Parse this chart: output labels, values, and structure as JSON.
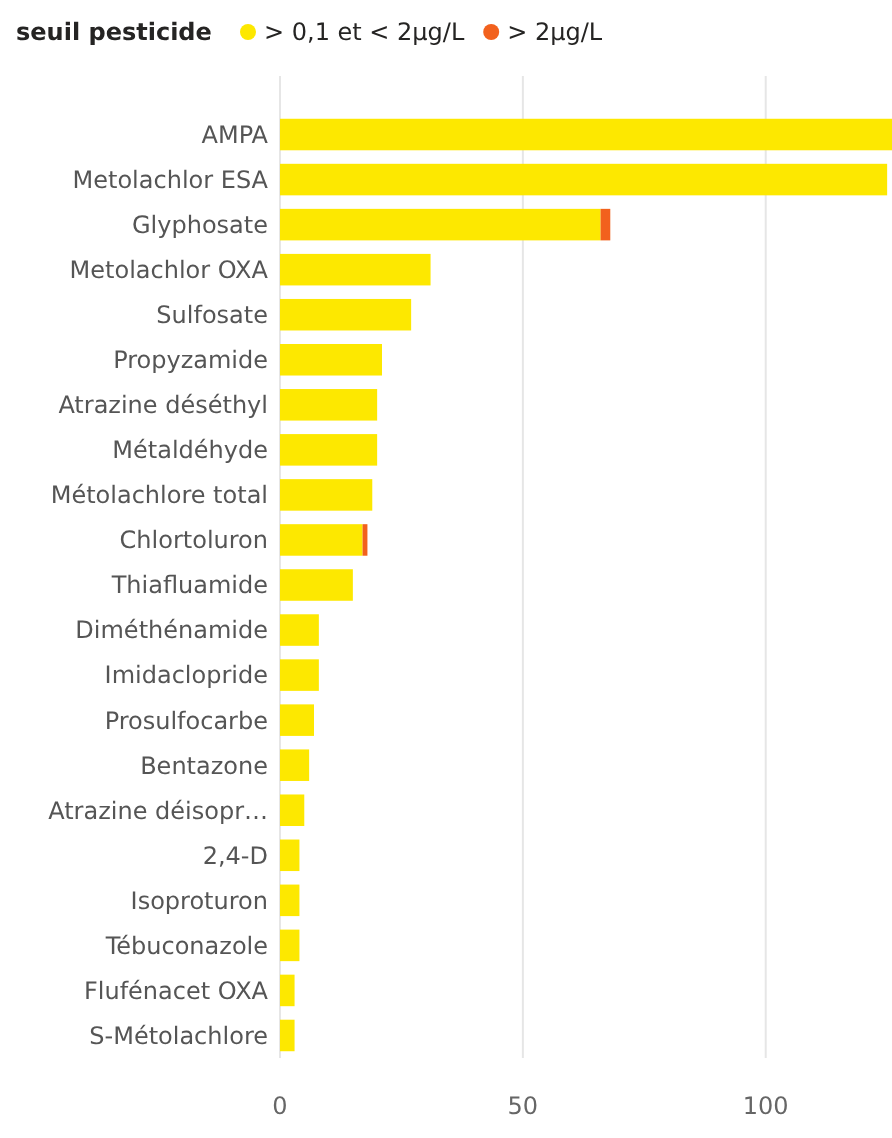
{
  "chart_data": {
    "type": "bar",
    "orientation": "horizontal",
    "stacked": true,
    "legend_title": "seuil pesticide",
    "legend": "top left",
    "grid": "x",
    "categories": [
      "AMPA",
      "Metolachlor ESA",
      "Glyphosate",
      "Metolachlor OXA",
      "Sulfosate",
      "Propyzamide",
      "Atrazine déséthyl",
      "Métaldéhyde",
      "Métolachlore total",
      "Chlortoluron",
      "Thiafluamide",
      "Diméthénamide",
      "Imidaclopride",
      "Prosulfocarbe",
      "Bentazone",
      "Atrazine déisopr…",
      "2,4-D",
      "Isoproturon",
      "Tébuconazole",
      "Flufénacet OXA",
      "S-Métolachlore"
    ],
    "series": [
      {
        "name": "> 0,1 et < 2µg/L",
        "color": "#fde800",
        "values": [
          126,
          125,
          66,
          31,
          27,
          21,
          20,
          20,
          19,
          17,
          15,
          8,
          8,
          7,
          6,
          5,
          4,
          4,
          4,
          3,
          3
        ]
      },
      {
        "name": "> 2µg/L",
        "color": "#f2611d",
        "values": [
          null,
          null,
          2,
          null,
          null,
          null,
          null,
          null,
          null,
          1,
          null,
          null,
          null,
          null,
          null,
          null,
          null,
          null,
          null,
          null,
          null
        ]
      }
    ],
    "xlim": [
      0,
      126
    ],
    "xticks": [
      0,
      50,
      100
    ]
  }
}
